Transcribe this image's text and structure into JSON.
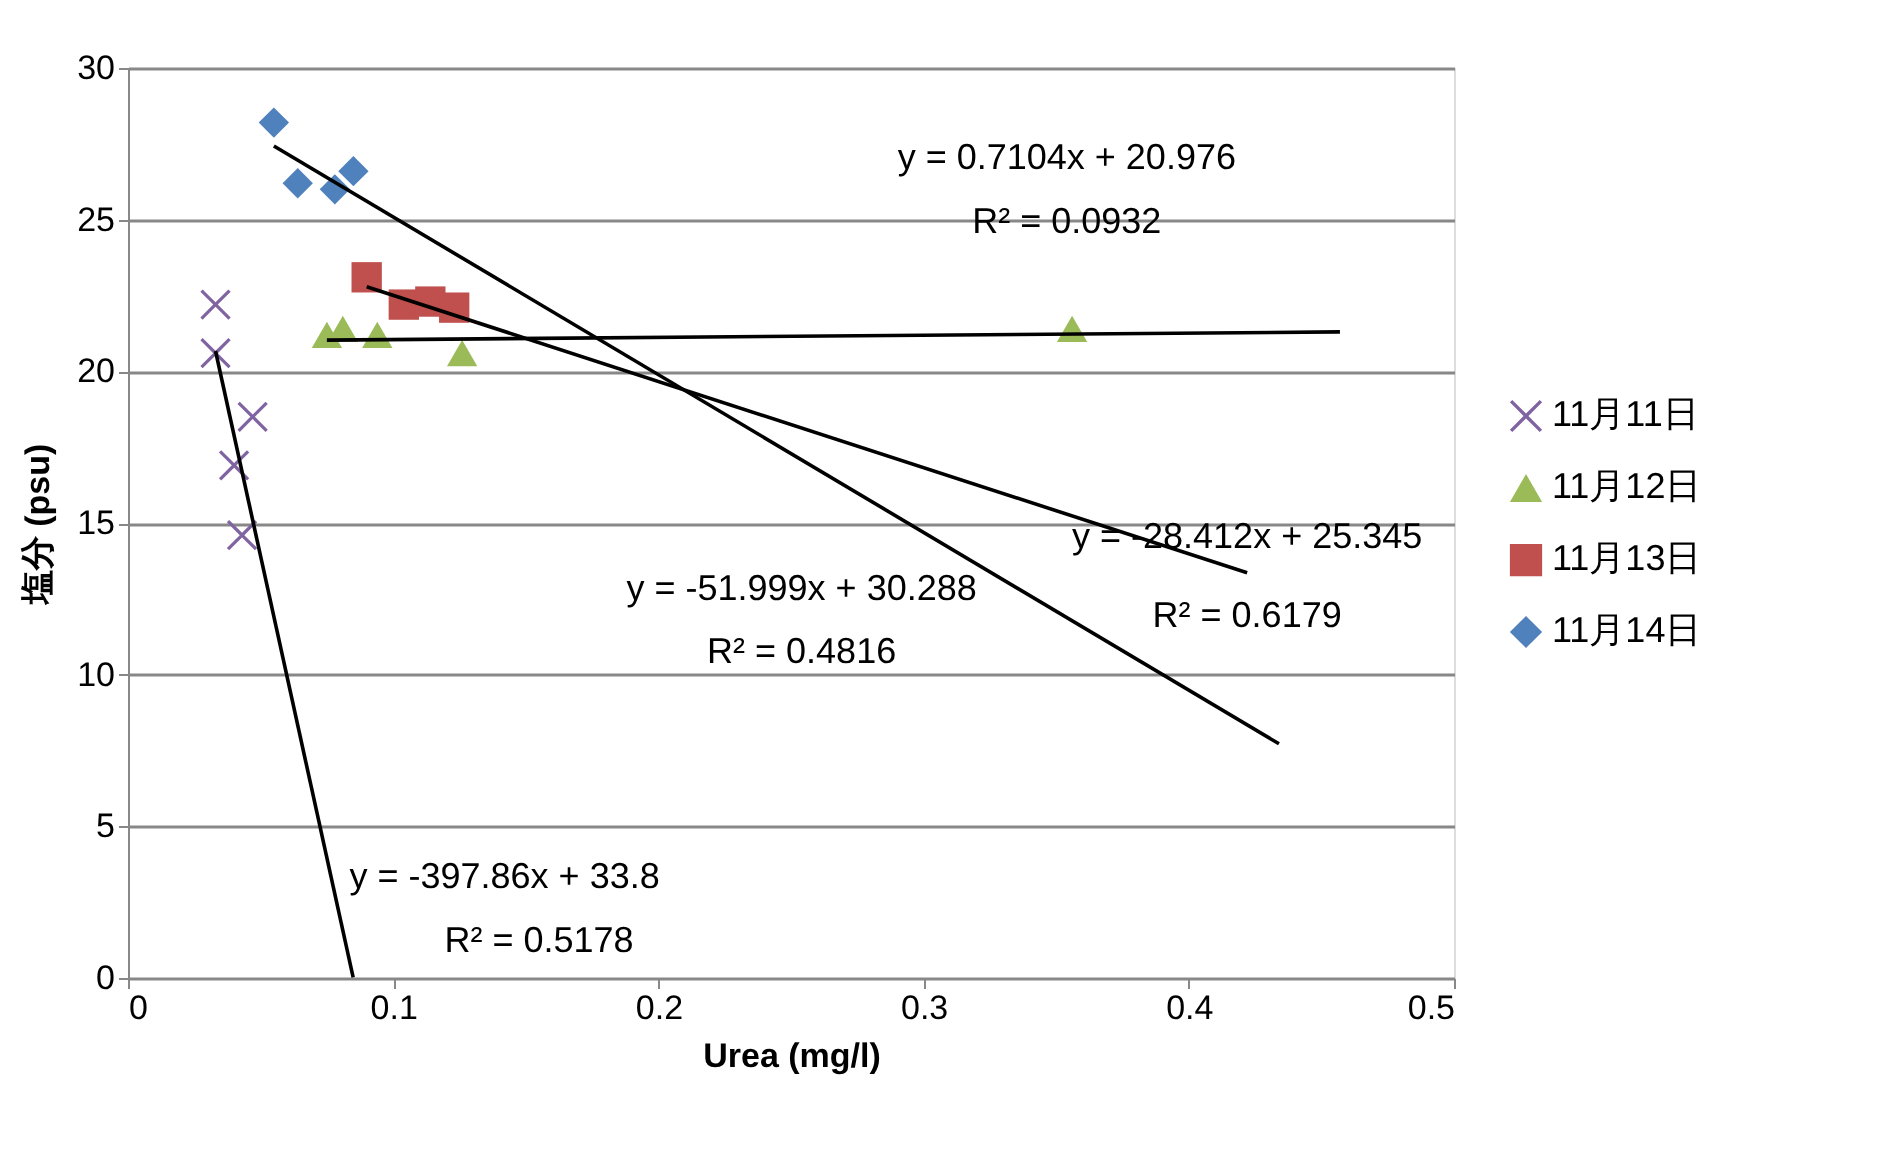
{
  "chart_data": {
    "type": "scatter",
    "xlabel": "Urea (mg/l)",
    "ylabel": "塩分 (psu)",
    "xlim": [
      0,
      0.5
    ],
    "xticks": [
      {
        "value": 0,
        "label": "0"
      },
      {
        "value": 0.1,
        "label": "0.1"
      },
      {
        "value": 0.2,
        "label": "0.2"
      },
      {
        "value": 0.3,
        "label": "0.3"
      },
      {
        "value": 0.4,
        "label": "0.4"
      },
      {
        "value": 0.5,
        "label": "0.5"
      }
    ],
    "ylim": [
      0,
      30
    ],
    "yticks": [
      0,
      5,
      10,
      15,
      20,
      25,
      30
    ],
    "grid": "y",
    "legend": "right",
    "series": [
      {
        "name": "11月11日",
        "color": "#8064a2",
        "marker": "cross",
        "x": [
          0.033,
          0.033,
          0.047,
          0.04,
          0.043
        ],
        "values": [
          22.2,
          20.6,
          18.5,
          16.9,
          14.6
        ]
      },
      {
        "name": "11月12日",
        "color": "#9bbb59",
        "marker": "triangle",
        "x": [
          0.075,
          0.081,
          0.094,
          0.126,
          0.356
        ],
        "values": [
          21.2,
          21.4,
          21.2,
          20.6,
          21.4
        ]
      },
      {
        "name": "11月13日",
        "color": "#c0504d",
        "marker": "square",
        "x": [
          0.09,
          0.104,
          0.114,
          0.123
        ],
        "values": [
          23.1,
          22.2,
          22.3,
          22.1
        ]
      },
      {
        "name": "11月14日",
        "color": "#4f81bd",
        "marker": "diamond",
        "x": [
          0.055,
          0.064,
          0.078,
          0.085
        ],
        "values": [
          28.2,
          26.2,
          26.0,
          26.6
        ]
      },
      {
        "type": "line",
        "color": "#000000",
        "x": [
          0.033,
          0.0849
        ],
        "values": [
          20.67,
          0.02
        ]
      },
      {
        "type": "line",
        "color": "#000000",
        "x": [
          0.075,
          0.457
        ],
        "values": [
          21.03,
          21.3
        ]
      },
      {
        "type": "line",
        "color": "#000000",
        "x": [
          0.09,
          0.422
        ],
        "values": [
          22.79,
          13.36
        ]
      },
      {
        "type": "line",
        "color": "#000000",
        "x": [
          0.055,
          0.434
        ],
        "values": [
          27.43,
          7.72
        ]
      }
    ],
    "annotations": [
      "y = 0.7104x + 20.976",
      "R² = 0.0932",
      "y = -28.412x + 25.345",
      "R² = 0.6179",
      "y = -51.999x + 30.288",
      "R² = 0.4816",
      "y = -397.86x + 33.8",
      "R² = 0.5178"
    ]
  }
}
